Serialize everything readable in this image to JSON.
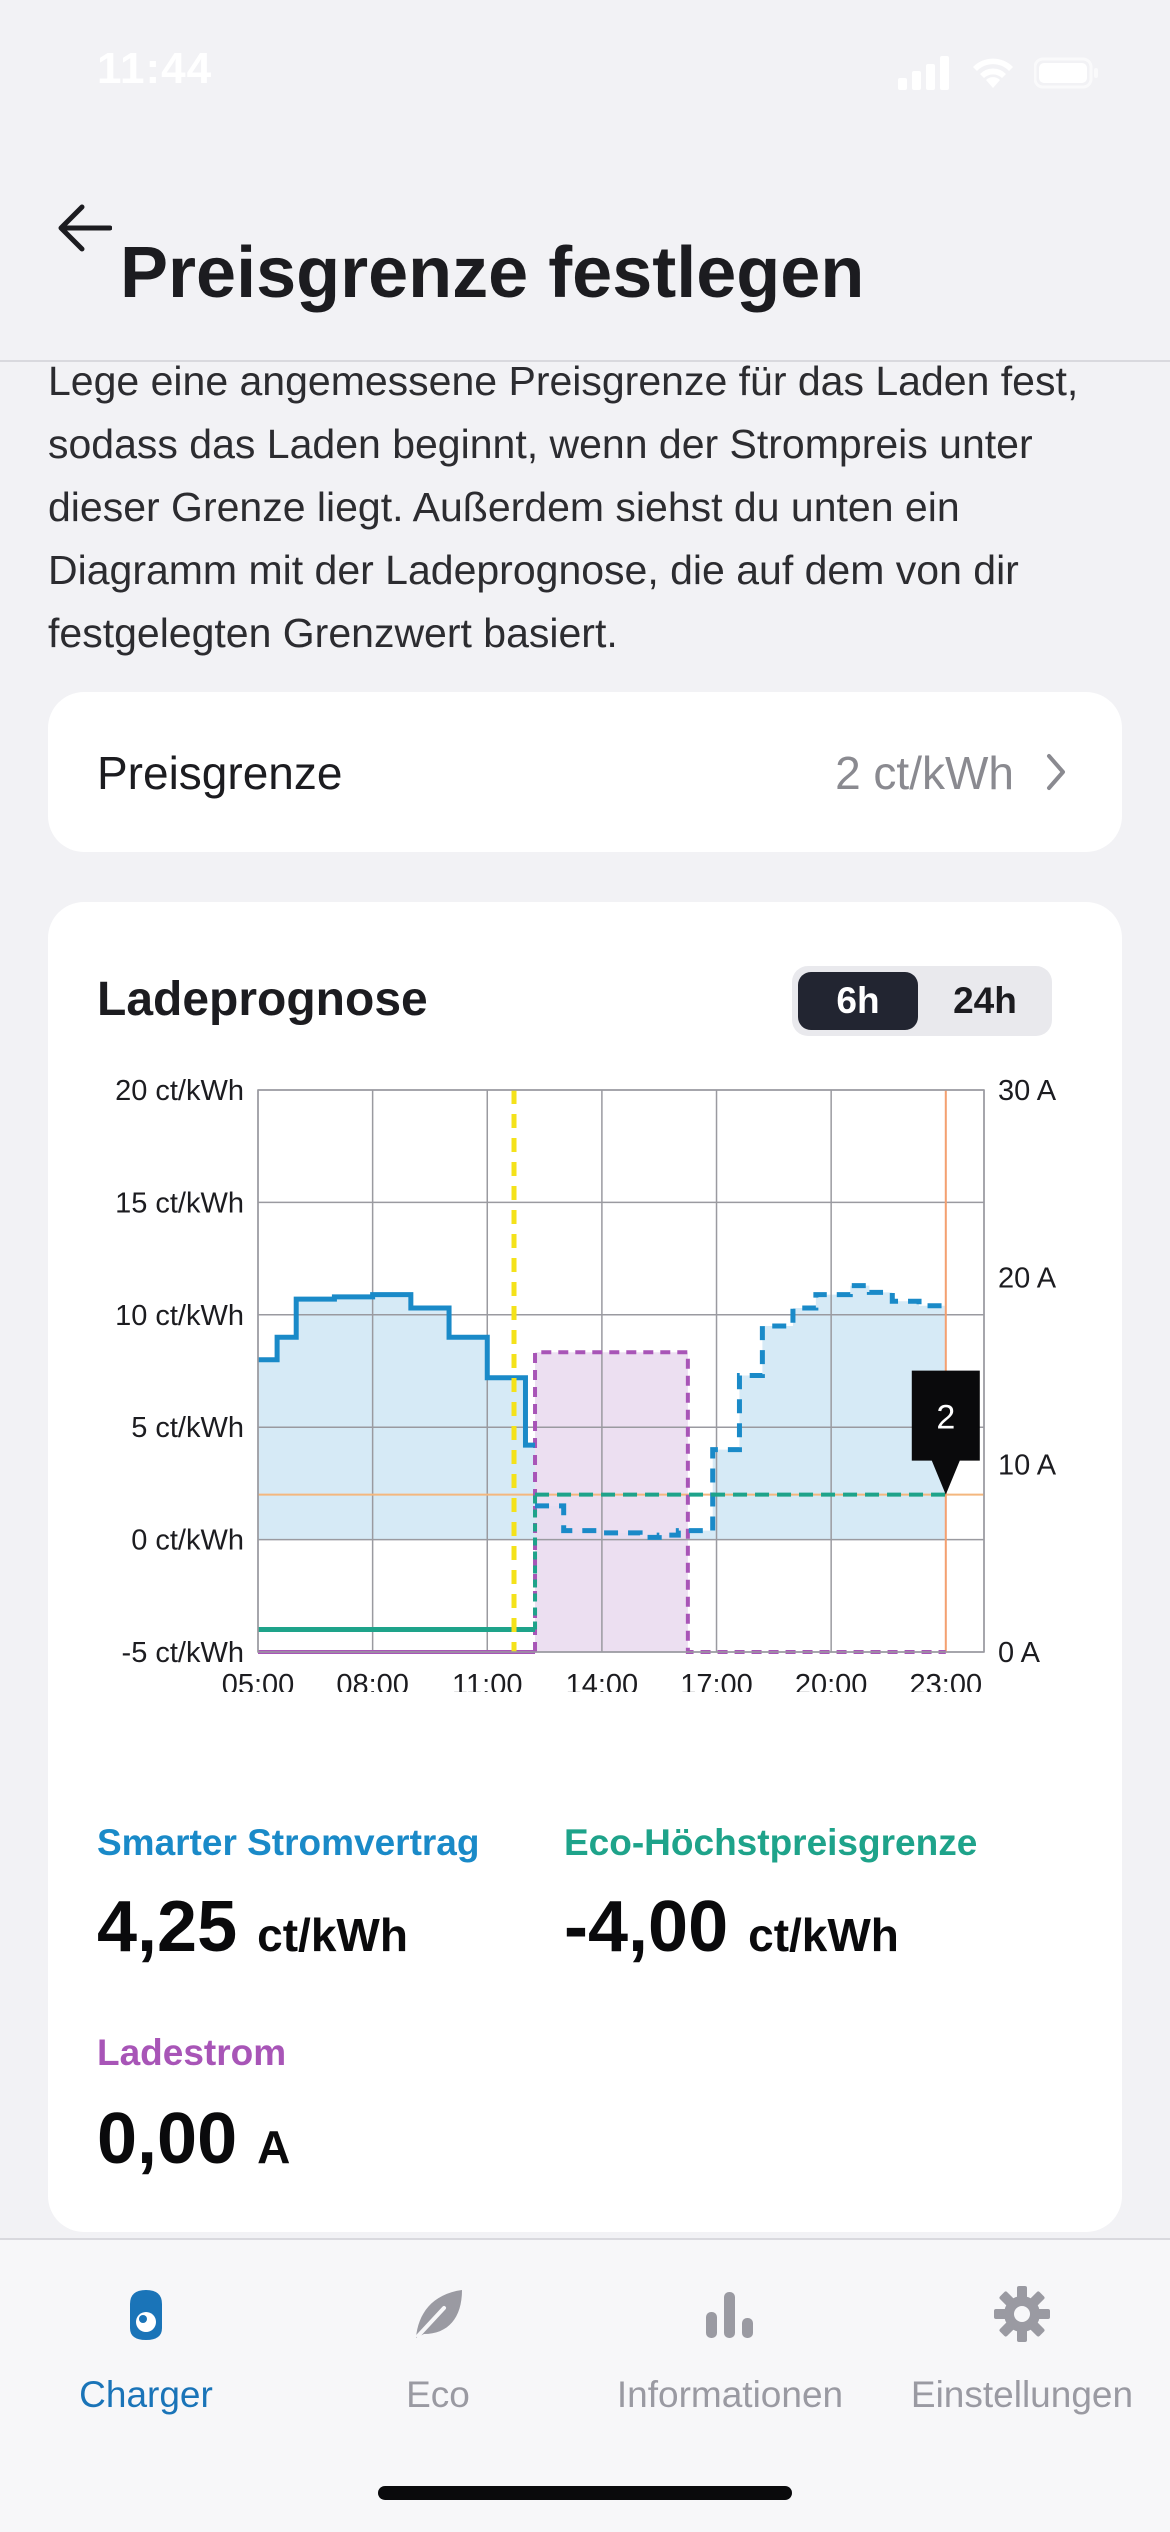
{
  "status_bar": {
    "time": "11:44"
  },
  "header": {
    "title": "Preisgrenze festlegen"
  },
  "description": "Lege eine angemessene Preisgrenze für das Laden fest, sodass das Laden beginnt, wenn der Strompreis unter dieser Grenze liegt. Außerdem siehst du unten ein Diagramm mit der Ladeprognose, die auf dem von dir festgelegten Grenzwert basiert.",
  "price_limit": {
    "label": "Preisgrenze",
    "value": "2 ct/kWh"
  },
  "forecast": {
    "title": "Ladeprognose",
    "range_options": [
      "6h",
      "24h"
    ],
    "selected_range": "6h"
  },
  "chart_data": {
    "type": "line",
    "x_ticks": [
      "05:00",
      "08:00",
      "11:00",
      "14:00",
      "17:00",
      "20:00",
      "23:00"
    ],
    "x_range_hours": [
      5,
      24
    ],
    "y_left_ticks": [
      "20 ct/kWh",
      "15 ct/kWh",
      "10 ct/kWh",
      "5 ct/kWh",
      "0 ct/kWh",
      "-5 ct/kWh"
    ],
    "y_left_range": [
      -5,
      20
    ],
    "y_right_ticks": [
      "30 A",
      "20 A",
      "10 A",
      "0 A"
    ],
    "y_right_range": [
      0,
      30
    ],
    "grid": true,
    "now_hour": 11.7,
    "cursor_hour": 23,
    "cursor_label": "2",
    "price_limit_line": 2,
    "series": [
      {
        "name": "Smarter Stromvertrag",
        "color": "#1a8ac8",
        "style": "step",
        "actual": [
          [
            5,
            8
          ],
          [
            5.5,
            9
          ],
          [
            6,
            10.7
          ],
          [
            7,
            10.8
          ],
          [
            8,
            10.9
          ],
          [
            9,
            10.3
          ],
          [
            10,
            9
          ],
          [
            11,
            7.2
          ],
          [
            12,
            4.2
          ],
          [
            12.25,
            4.2
          ]
        ],
        "forecast": [
          [
            12.25,
            1.5
          ],
          [
            13,
            0.4
          ],
          [
            14,
            0.3
          ],
          [
            15,
            0.1
          ],
          [
            15.5,
            0.2
          ],
          [
            16,
            0.4
          ],
          [
            16.9,
            4
          ],
          [
            17.6,
            7.3
          ],
          [
            18.2,
            9.5
          ],
          [
            19,
            10.3
          ],
          [
            19.6,
            10.9
          ],
          [
            20.5,
            11.3
          ],
          [
            21,
            11
          ],
          [
            21.6,
            10.6
          ],
          [
            22.3,
            10.4
          ],
          [
            23,
            10.3
          ]
        ]
      },
      {
        "name": "Eco-Höchstpreisgrenze",
        "color": "#1ea38a",
        "style": "step",
        "actual": [
          [
            5,
            -4
          ],
          [
            12.25,
            -4
          ]
        ],
        "forecast": [
          [
            12.25,
            2
          ],
          [
            23,
            2
          ]
        ]
      },
      {
        "name": "Ladestrom",
        "color": "#a855b7",
        "style": "step",
        "axis": "right",
        "forecast": [
          [
            12.25,
            0
          ],
          [
            12.25,
            16
          ],
          [
            16.25,
            16
          ],
          [
            16.25,
            0
          ],
          [
            23,
            0
          ]
        ]
      }
    ]
  },
  "metrics": [
    {
      "label": "Smarter Stromvertrag",
      "value": "4,25",
      "unit": "ct/kWh",
      "color": "#1a8ac8"
    },
    {
      "label": "Eco-Höchstpreisgrenze",
      "value": "-4,00",
      "unit": "ct/kWh",
      "color": "#1ea38a"
    },
    {
      "label": "Ladestrom",
      "value": "0,00",
      "unit": "A",
      "color": "#a855b7"
    }
  ],
  "tabs": [
    {
      "label": "Charger",
      "icon": "charger-icon",
      "active": true
    },
    {
      "label": "Eco",
      "icon": "leaf-icon",
      "active": false
    },
    {
      "label": "Informationen",
      "icon": "bar-chart-icon",
      "active": false
    },
    {
      "label": "Einstellungen",
      "icon": "gear-icon",
      "active": false
    }
  ],
  "colors": {
    "accent": "#1a74b8",
    "inactive": "#9a9aa2"
  }
}
